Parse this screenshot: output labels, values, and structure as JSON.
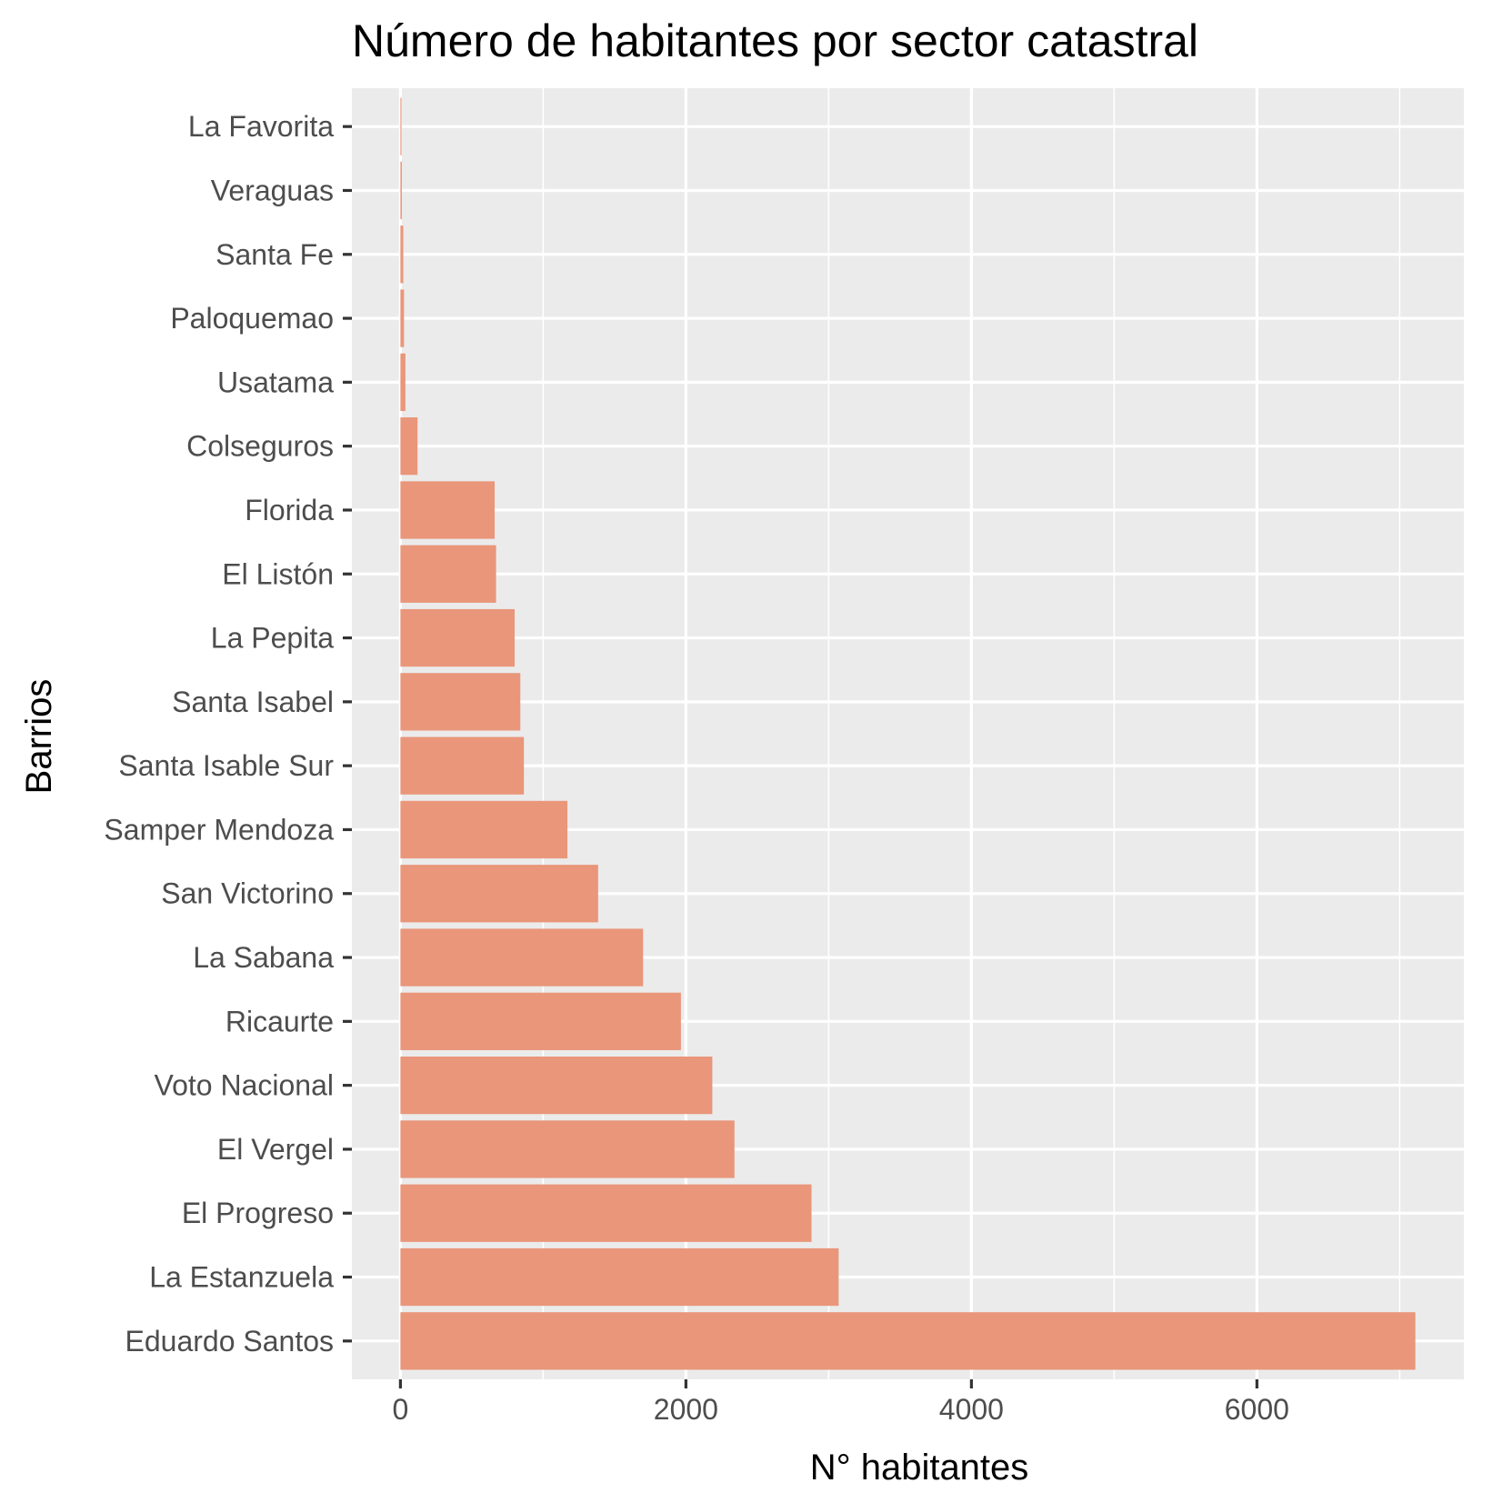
{
  "chart_data": {
    "type": "bar",
    "orientation": "horizontal",
    "title": "Número de habitantes por sector catastral",
    "xlabel": "N° habitantes",
    "ylabel": "Barrios",
    "categories": [
      "La Favorita",
      "Veraguas",
      "Santa Fe",
      "Paloquemao",
      "Usatama",
      "Colseguros",
      "Florida",
      "El Listón",
      "La Pepita",
      "Santa Isabel",
      "Santa Isable Sur",
      "Samper Mendoza",
      "San Victorino",
      "La Sabana",
      "Ricaurte",
      "Voto Nacional",
      "El Vergel",
      "El Progreso",
      "La Estanzuela",
      "Eduardo Santos"
    ],
    "values": [
      5,
      10,
      20,
      25,
      35,
      120,
      660,
      670,
      800,
      840,
      865,
      1170,
      1385,
      1700,
      1965,
      2185,
      2340,
      2880,
      3070,
      7110
    ],
    "xlim": [
      -340,
      7450
    ],
    "xticks": [
      0,
      2000,
      4000,
      6000
    ],
    "xtick_labels": [
      "0",
      "2000",
      "4000",
      "6000"
    ],
    "grid": true,
    "legend": "none",
    "colors": {
      "bar": "#e9967a",
      "panel": "#ebebeb",
      "grid_major": "#ffffff",
      "tick_text": "#4d4d4d"
    }
  }
}
